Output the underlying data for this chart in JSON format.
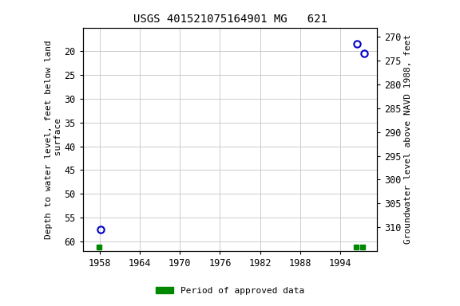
{
  "title": "USGS 401521075164901 MG   621",
  "ylabel_left": "Depth to water level, feet below land\n surface",
  "ylabel_right": "Groundwater level above NAVD 1988, feet",
  "xlim": [
    1955.5,
    1999.5
  ],
  "ylim_left": [
    15,
    62
  ],
  "ylim_right": [
    315,
    268
  ],
  "xticks": [
    1958,
    1964,
    1970,
    1976,
    1982,
    1988,
    1994
  ],
  "yticks_left": [
    20,
    25,
    30,
    35,
    40,
    45,
    50,
    55,
    60
  ],
  "yticks_right": [
    310,
    305,
    300,
    295,
    290,
    285,
    280,
    275,
    270
  ],
  "data_points": [
    {
      "year": 1958.2,
      "depth": 57.5
    },
    {
      "year": 1996.5,
      "depth": 18.5
    },
    {
      "year": 1997.5,
      "depth": 20.5
    }
  ],
  "green_squares": [
    {
      "year": 1957.9,
      "depth": 61.2
    },
    {
      "year": 1996.3,
      "depth": 61.2
    },
    {
      "year": 1997.3,
      "depth": 61.2
    }
  ],
  "point_color": "#0000cc",
  "green_color": "#008800",
  "background_color": "#ffffff",
  "grid_color": "#cccccc",
  "font_family": "monospace",
  "legend_label": "Period of approved data",
  "title_fontsize": 10,
  "label_fontsize": 8,
  "tick_fontsize": 8.5
}
